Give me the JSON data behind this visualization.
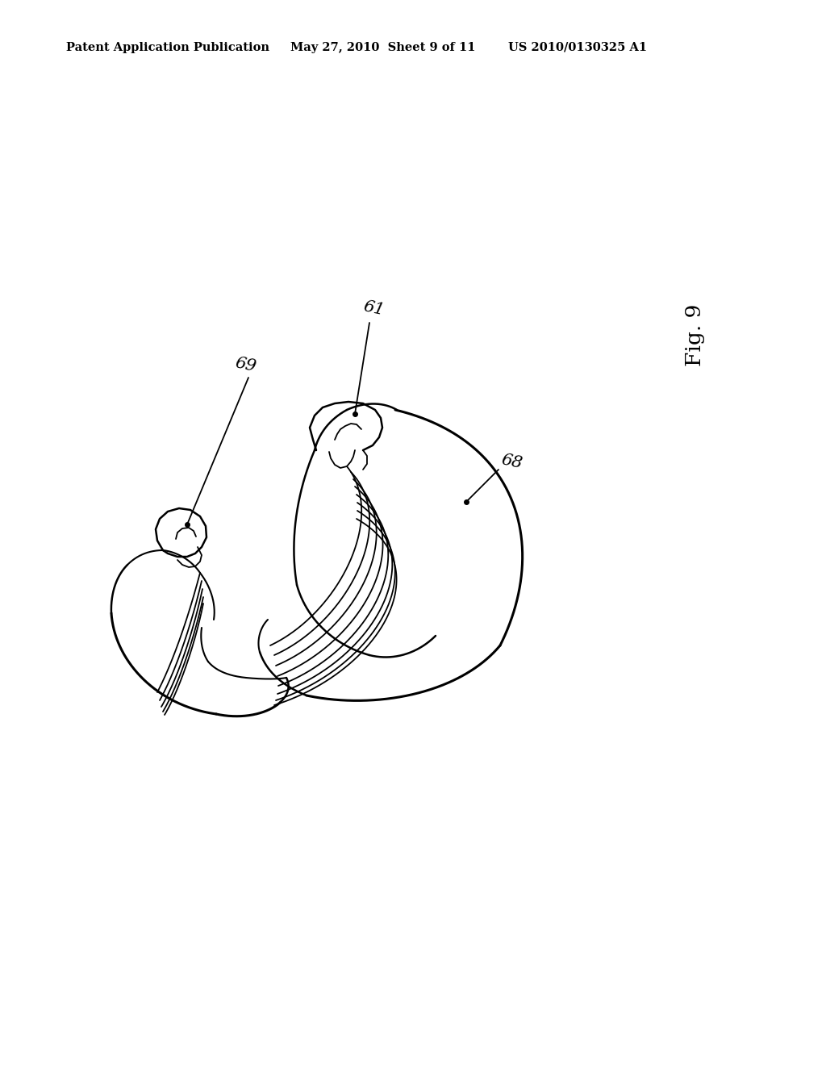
{
  "background_color": "#ffffff",
  "header_left": "Patent Application Publication",
  "header_center": "May 27, 2010  Sheet 9 of 11",
  "header_right": "US 2010/0130325 A1",
  "fig_label": "Fig. 9",
  "ref_61": "61",
  "ref_68": "68",
  "ref_69": "69",
  "line_color": "#000000",
  "line_width": 1.6,
  "header_fontsize": 10.5
}
